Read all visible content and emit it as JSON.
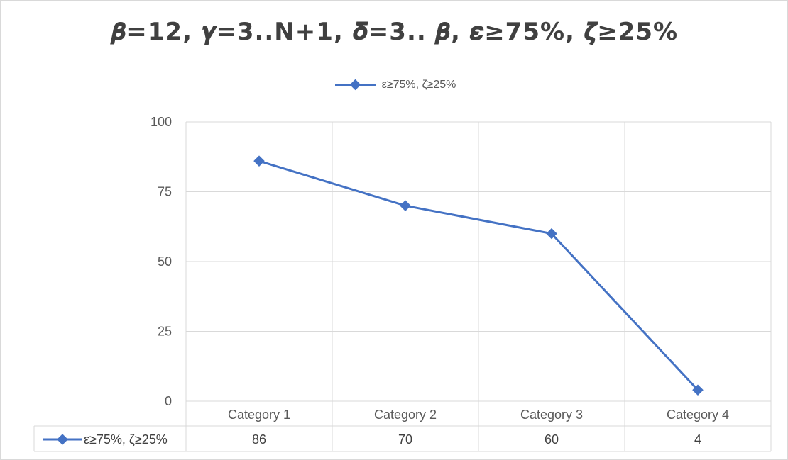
{
  "chart_data": {
    "type": "line",
    "title": "𝜷=12, 𝜸=3..N+1, 𝜹=3.. 𝜷, 𝜺≥75%, 𝜻≥25%",
    "categories": [
      "Category 1",
      "Category 2",
      "Category 3",
      "Category 4"
    ],
    "series": [
      {
        "name": "ε≥75%, ζ≥25%",
        "values": [
          86,
          70,
          60,
          4
        ]
      }
    ],
    "yticks": [
      0,
      25,
      50,
      75,
      100
    ],
    "ylim": [
      0,
      100
    ],
    "grid": true,
    "legend_position": "top",
    "data_table": true,
    "series_color": "#4472c4"
  }
}
